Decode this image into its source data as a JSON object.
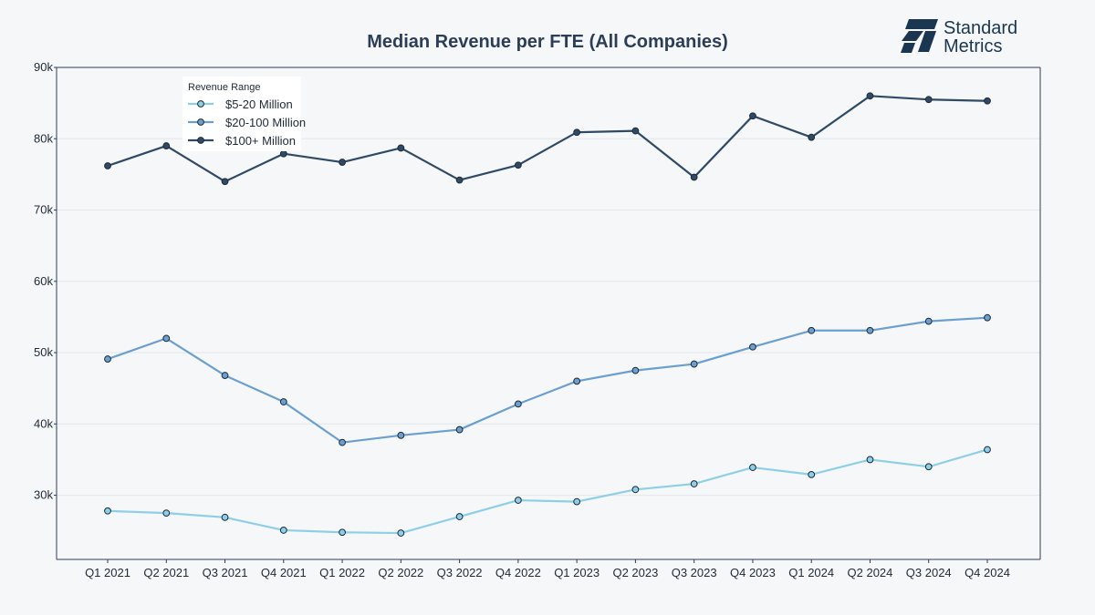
{
  "brand": {
    "line1": "Standard",
    "line2": "Metrics",
    "color": "#1a3650"
  },
  "chart_data": {
    "type": "line",
    "title": "Median Revenue per FTE (All Companies)",
    "xlabel": "",
    "ylabel": "",
    "categories": [
      "Q1 2021",
      "Q2 2021",
      "Q3 2021",
      "Q4 2021",
      "Q1 2022",
      "Q2 2022",
      "Q3 2022",
      "Q4 2022",
      "Q1 2023",
      "Q2 2023",
      "Q3 2023",
      "Q4 2023",
      "Q1 2024",
      "Q2 2024",
      "Q3 2024",
      "Q4 2024"
    ],
    "ylim": [
      21000,
      90000
    ],
    "yticks": [
      30000,
      40000,
      50000,
      60000,
      70000,
      80000,
      90000
    ],
    "ytick_labels": [
      "30k",
      "40k",
      "50k",
      "60k",
      "70k",
      "80k",
      "90k"
    ],
    "grid": true,
    "legend": {
      "title": "Revenue Range",
      "placement": "top-left"
    },
    "series": [
      {
        "name": "$5-20 Million",
        "color": "#8ecfe8",
        "values": [
          27800,
          27500,
          26900,
          25100,
          24800,
          24700,
          27000,
          29300,
          29100,
          30800,
          31600,
          33900,
          32900,
          35000,
          34000,
          36400
        ]
      },
      {
        "name": "$20-100 Million",
        "color": "#6a9fd0",
        "values": [
          49100,
          52000,
          46800,
          43100,
          37400,
          38400,
          39200,
          42800,
          46000,
          47500,
          48400,
          50800,
          53100,
          53100,
          54400,
          54900
        ]
      },
      {
        "name": "$100+ Million",
        "color": "#2f4a66",
        "values": [
          76200,
          79000,
          74000,
          77900,
          76700,
          78700,
          74200,
          76300,
          80900,
          81100,
          74600,
          83200,
          80200,
          86000,
          85500,
          85300
        ]
      }
    ]
  }
}
